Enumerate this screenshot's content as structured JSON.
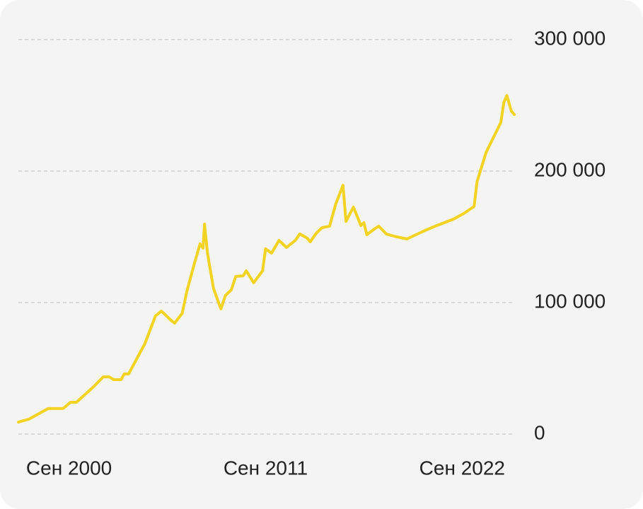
{
  "chart_data": {
    "type": "line",
    "x": [
      "1997-11",
      "1998-06",
      "1999-07",
      "2000-05",
      "2000-10",
      "2001-02",
      "2001-04",
      "2002-01",
      "2002-08",
      "2002-12",
      "2003-03",
      "2003-08",
      "2003-10",
      "2004-01",
      "2004-12",
      "2005-07",
      "2005-11",
      "2006-06",
      "2006-08",
      "2007-01",
      "2007-04",
      "2007-09",
      "2008-01",
      "2008-03",
      "2008-04",
      "2008-06",
      "2008-10",
      "2009-03",
      "2009-06",
      "2009-10",
      "2010-01",
      "2010-06",
      "2010-08",
      "2011-01",
      "2011-07",
      "2011-09",
      "2012-01",
      "2012-06",
      "2012-11",
      "2013-05",
      "2013-08",
      "2014-01",
      "2014-03",
      "2014-07",
      "2014-11",
      "2015-04",
      "2015-08",
      "2016-01",
      "2016-03",
      "2016-08",
      "2017-01",
      "2017-03",
      "2017-05",
      "2017-10",
      "2018-01",
      "2018-06",
      "2019-01",
      "2019-08",
      "2020-07",
      "2021-03",
      "2022-03",
      "2022-10",
      "2023-05",
      "2023-07",
      "2024-01",
      "2024-11",
      "2025-01",
      "2025-03",
      "2025-06",
      "2025-08"
    ],
    "series": [
      {
        "color": "#f3d321",
        "values": [
          9100,
          11300,
          19400,
          19400,
          24200,
          24200,
          26300,
          35500,
          43500,
          43500,
          41400,
          41400,
          45700,
          45700,
          68800,
          89800,
          93500,
          86000,
          84400,
          91900,
          108000,
          129000,
          144600,
          141400,
          159700,
          137600,
          110800,
          95200,
          105400,
          109700,
          119900,
          120400,
          124200,
          115100,
          124200,
          140900,
          137600,
          147300,
          141900,
          147300,
          152200,
          148900,
          146200,
          152700,
          157000,
          158100,
          174700,
          189200,
          161800,
          172600,
          158600,
          160800,
          151600,
          155900,
          158100,
          152200,
          150000,
          148400,
          154300,
          158100,
          163400,
          167700,
          173100,
          191900,
          214000,
          237100,
          252200,
          257500,
          245700,
          243000
        ]
      }
    ],
    "xlim": [
      "1997-11",
      "2025-08"
    ],
    "xticks": [
      {
        "value": "2000-09",
        "label": "Сен 2000"
      },
      {
        "value": "2011-09",
        "label": "Сен 2011"
      },
      {
        "value": "2022-09",
        "label": "Сен 2022"
      }
    ],
    "ylim": [
      0,
      300000
    ],
    "yticks": [
      0,
      {
        "value": 100000,
        "label": "100 000"
      },
      {
        "value": 200000,
        "label": "200 000"
      },
      {
        "value": 300000,
        "label": "300 000"
      }
    ],
    "grid": true
  }
}
